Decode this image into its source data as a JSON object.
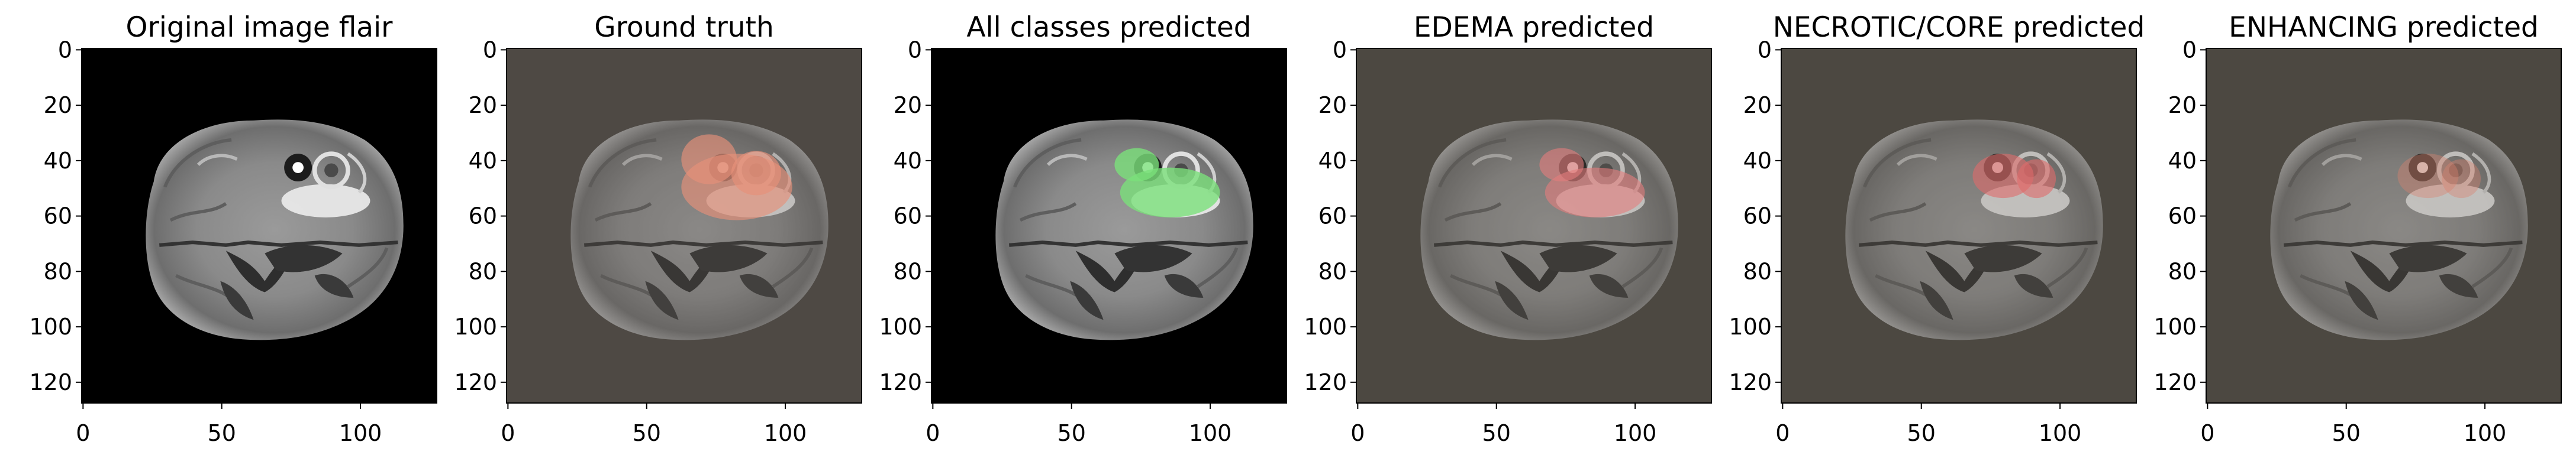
{
  "figure": {
    "panels": [
      {
        "title": "Original image flair",
        "background": "#000000",
        "tint": "#ffffff",
        "tint_opacity": 0,
        "overlays": []
      },
      {
        "title": "Ground truth",
        "background": "#4a4642",
        "tint": "#5a524c",
        "tint_opacity": 0.25,
        "overlays": [
          {
            "color": "#e6917a",
            "opacity": 0.65,
            "region": "full"
          }
        ]
      },
      {
        "title": "All classes predicted",
        "background": "#000000",
        "tint": "#ffffff",
        "tint_opacity": 0,
        "overlays": [
          {
            "color": "#7be07b",
            "opacity": 0.8,
            "region": "edema"
          }
        ]
      },
      {
        "title": "EDEMA predicted",
        "background": "#47453f",
        "tint": "#5a5448",
        "tint_opacity": 0.25,
        "overlays": [
          {
            "color": "#e57d7d",
            "opacity": 0.6,
            "region": "edema"
          }
        ]
      },
      {
        "title": "NECROTIC/CORE predicted",
        "background": "#47453f",
        "tint": "#5a5448",
        "tint_opacity": 0.25,
        "overlays": [
          {
            "color": "#e06a6a",
            "opacity": 0.6,
            "region": "core"
          }
        ]
      },
      {
        "title": "ENHANCING predicted",
        "background": "#47453f",
        "tint": "#5a5448",
        "tint_opacity": 0.25,
        "overlays": [
          {
            "color": "#d9826d",
            "opacity": 0.4,
            "region": "core"
          }
        ]
      }
    ],
    "x_ticks": [
      "0",
      "50",
      "100"
    ],
    "y_ticks": [
      "0",
      "20",
      "40",
      "60",
      "80",
      "100",
      "120"
    ]
  }
}
